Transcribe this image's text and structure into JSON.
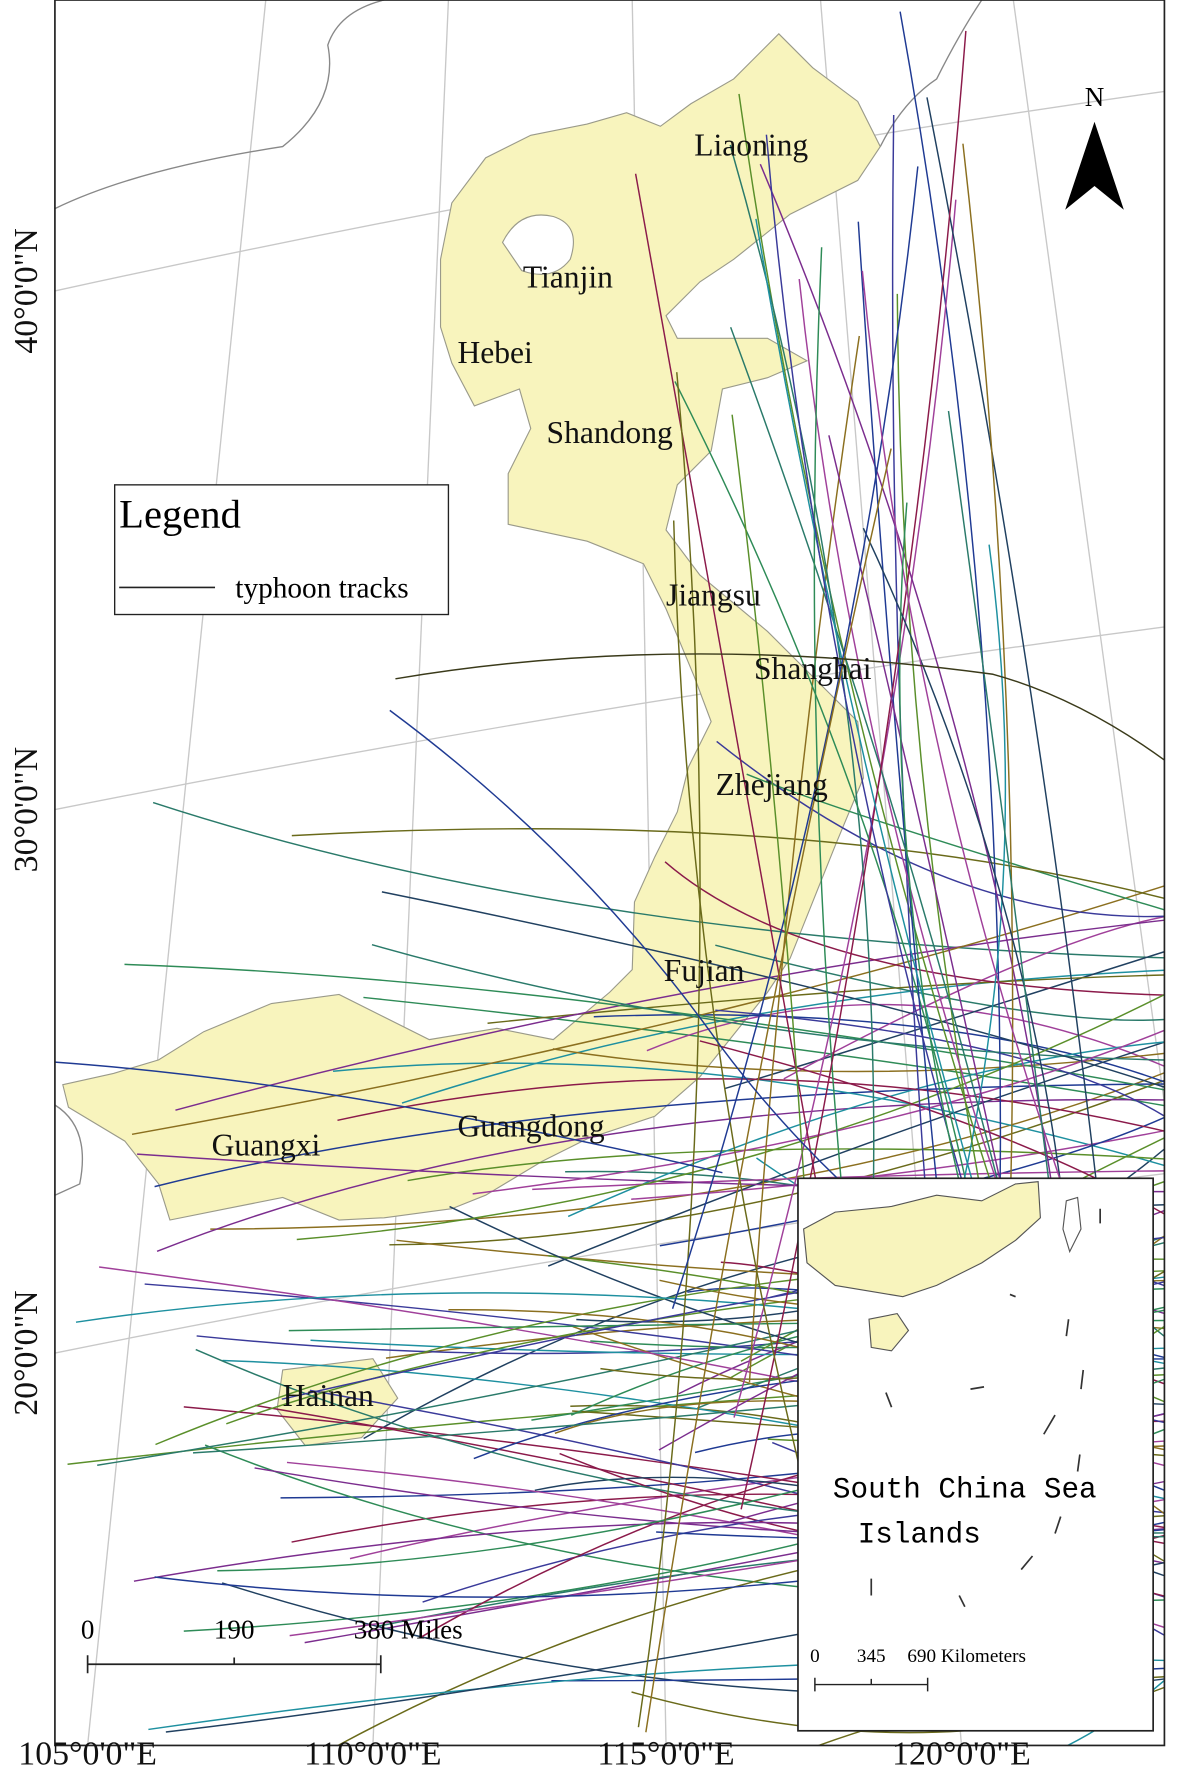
{
  "map": {
    "graticule": {
      "latitudes": [
        "40°0'0\"N",
        "30°0'0\"N",
        "20°0'0\"N"
      ],
      "longitudes": [
        "105°0'0\"E",
        "110°0'0\"E",
        "115°0'0\"E",
        "120°0'0\"E"
      ]
    },
    "provinces": [
      "Liaoning",
      "Tianjin",
      "Hebei",
      "Shandong",
      "Jiangsu",
      "Shanghai",
      "Zhejiang",
      "Fujian",
      "Guangdong",
      "Guangxi",
      "Hainan"
    ],
    "legend": {
      "title": "Legend",
      "items": [
        "typhoon tracks"
      ]
    },
    "scale_bar": {
      "labels": [
        "0",
        "190",
        "380 Miles"
      ]
    },
    "inset": {
      "title_lines": [
        "South China Sea",
        "Islands"
      ],
      "scale_labels": [
        "0",
        "345",
        "690 Kilometers"
      ]
    },
    "north_arrow": "N"
  }
}
